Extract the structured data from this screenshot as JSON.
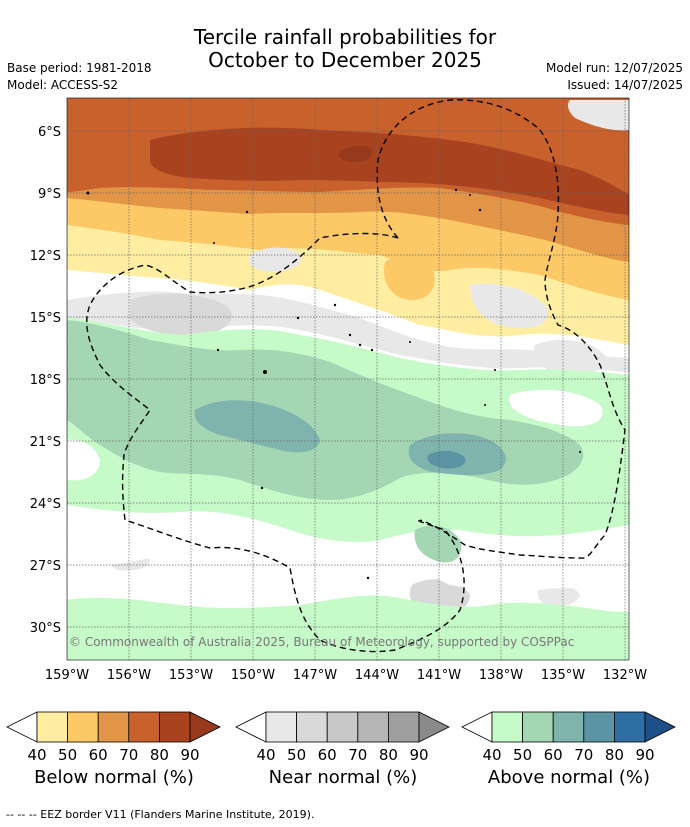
{
  "title": {
    "line1": "Tercile rainfall probabilities for",
    "line2": "October to December 2025"
  },
  "meta": {
    "base_period": "Base period: 1981-2018",
    "model": "Model: ACCESS-S2",
    "model_run": "Model run: 12/07/2025",
    "issued": "Issued: 14/07/2025"
  },
  "map": {
    "lat_labels": [
      "6°S",
      "9°S",
      "12°S",
      "15°S",
      "18°S",
      "21°S",
      "24°S",
      "27°S",
      "30°S"
    ],
    "lon_labels": [
      "159°W",
      "156°W",
      "153°W",
      "150°W",
      "147°W",
      "144°W",
      "141°W",
      "138°W",
      "135°W",
      "132°W"
    ],
    "copyright": "© Commonwealth of Australia 2025, Bureau of Meteorology, supported by COSPPac"
  },
  "colorbars": [
    {
      "name": "below",
      "label": "Below normal (%)",
      "ticks": [
        "40",
        "50",
        "60",
        "70",
        "80",
        "90"
      ],
      "colors": [
        "#ffeea1",
        "#fdc866",
        "#e29546",
        "#c9612d",
        "#a8421f"
      ],
      "over_color": "#96391c"
    },
    {
      "name": "near",
      "label": "Near normal (%)",
      "ticks": [
        "40",
        "50",
        "60",
        "70",
        "80",
        "90"
      ],
      "colors": [
        "#e8e8e8",
        "#d9d9d9",
        "#c8c8c8",
        "#b5b5b5",
        "#9f9f9f"
      ],
      "over_color": "#8a8a8a"
    },
    {
      "name": "above",
      "label": "Above normal (%)",
      "ticks": [
        "40",
        "50",
        "60",
        "70",
        "80",
        "90"
      ],
      "colors": [
        "#c7fac9",
        "#a4d6b4",
        "#7fb3ae",
        "#5c94a4",
        "#2f6ea3"
      ],
      "over_color": "#1f4f86"
    }
  ],
  "footer": {
    "legend_text": "-- -- -- EEZ border V11 (Flanders Marine Institute, 2019)."
  }
}
